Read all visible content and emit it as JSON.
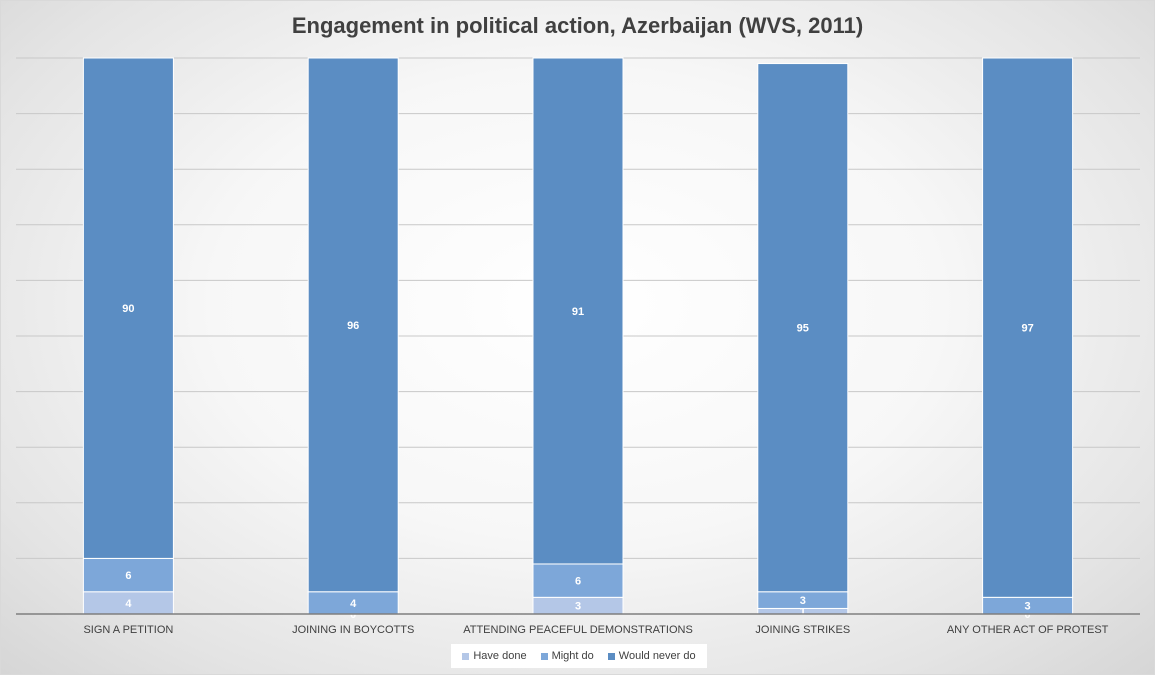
{
  "chart_data": {
    "type": "bar",
    "stacked": true,
    "title": "Engagement in political action, Azerbaijan (WVS, 2011)",
    "xlabel": "",
    "ylabel": "",
    "ylim": [
      0,
      100
    ],
    "grid": true,
    "legend_position": "bottom",
    "categories": [
      "SIGN A PETITION",
      "JOINING IN BOYCOTTS",
      "ATTENDING PEACEFUL DEMONSTRATIONS",
      "JOINING STRIKES",
      "ANY OTHER ACT OF PROTEST"
    ],
    "series": [
      {
        "name": "Have done",
        "values": [
          4,
          0,
          3,
          1,
          0
        ],
        "color": "#b4c7e7"
      },
      {
        "name": "Might do",
        "values": [
          6,
          4,
          6,
          3,
          3
        ],
        "color": "#7da7d9"
      },
      {
        "name": "Would never do",
        "values": [
          90,
          96,
          91,
          95,
          97
        ],
        "color": "#5b8dc3"
      }
    ]
  }
}
